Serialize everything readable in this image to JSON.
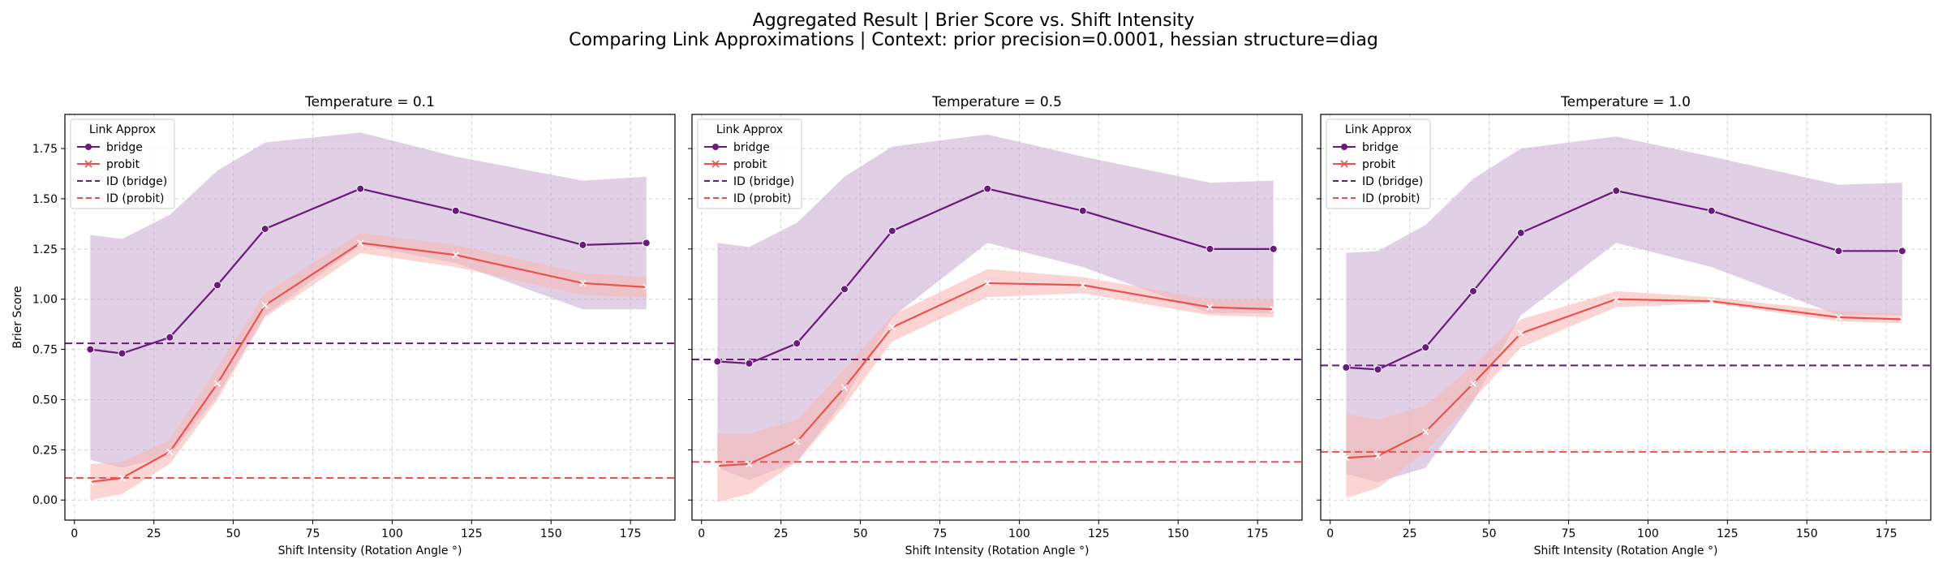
{
  "figure": {
    "title_line1": "Aggregated Result | Brier Score vs. Shift Intensity",
    "title_line2": "Comparing Link Approximations | Context: prior precision=0.0001, hessian structure=diag"
  },
  "colors": {
    "bridge": "#6a1a7a",
    "probit": "#e8534f",
    "bridge_band": "#c9a9cf",
    "probit_band": "#f7b9b6"
  },
  "chart_data": [
    {
      "type": "line",
      "title": "Temperature = 0.1",
      "xlabel": "Shift Intensity (Rotation Angle °)",
      "ylabel": "Brier Score",
      "xlim": [
        -3,
        189
      ],
      "ylim": [
        -0.1,
        1.92
      ],
      "xticks": [
        0,
        25,
        50,
        75,
        100,
        125,
        150,
        175
      ],
      "yticks": [
        "0.00",
        "0.25",
        "0.50",
        "0.75",
        "1.00",
        "1.25",
        "1.50",
        "1.75"
      ],
      "grid": true,
      "legend_title": "Link Approx",
      "legend_position": "upper-left",
      "legend": [
        "bridge",
        "probit",
        "ID (bridge)",
        "ID (probit)"
      ],
      "x": [
        5,
        15,
        30,
        45,
        60,
        90,
        120,
        160,
        180
      ],
      "series": [
        {
          "name": "bridge",
          "values": [
            0.75,
            0.73,
            0.81,
            1.07,
            1.35,
            1.55,
            1.44,
            1.27,
            1.28
          ],
          "lower": [
            0.2,
            0.16,
            0.22,
            0.52,
            0.92,
            1.27,
            1.18,
            0.95,
            0.95
          ],
          "upper": [
            1.32,
            1.3,
            1.42,
            1.64,
            1.78,
            1.83,
            1.71,
            1.59,
            1.61
          ]
        },
        {
          "name": "probit",
          "values": [
            0.09,
            0.11,
            0.24,
            0.58,
            0.97,
            1.28,
            1.22,
            1.08,
            1.06
          ],
          "lower": [
            0.0,
            0.03,
            0.18,
            0.5,
            0.91,
            1.23,
            1.16,
            1.02,
            1.01
          ],
          "upper": [
            0.18,
            0.19,
            0.3,
            0.66,
            1.03,
            1.33,
            1.27,
            1.13,
            1.11
          ]
        }
      ],
      "reference_lines": [
        {
          "name": "ID (bridge)",
          "value": 0.78
        },
        {
          "name": "ID (probit)",
          "value": 0.11
        }
      ]
    },
    {
      "type": "line",
      "title": "Temperature = 0.5",
      "xlabel": "Shift Intensity (Rotation Angle °)",
      "ylabel": "",
      "xlim": [
        -3,
        189
      ],
      "ylim": [
        -0.1,
        1.92
      ],
      "xticks": [
        0,
        25,
        50,
        75,
        100,
        125,
        150,
        175
      ],
      "yticks": [],
      "grid": true,
      "legend_title": "Link Approx",
      "legend_position": "upper-left",
      "legend": [
        "bridge",
        "probit",
        "ID (bridge)",
        "ID (probit)"
      ],
      "x": [
        5,
        15,
        30,
        45,
        60,
        90,
        120,
        160,
        180
      ],
      "series": [
        {
          "name": "bridge",
          "values": [
            0.69,
            0.68,
            0.78,
            1.05,
            1.34,
            1.55,
            1.44,
            1.25,
            1.25
          ],
          "lower": [
            0.16,
            0.1,
            0.19,
            0.5,
            0.91,
            1.28,
            1.16,
            0.93,
            0.93
          ],
          "upper": [
            1.28,
            1.26,
            1.38,
            1.61,
            1.76,
            1.82,
            1.71,
            1.58,
            1.59
          ]
        },
        {
          "name": "probit",
          "values": [
            0.17,
            0.18,
            0.29,
            0.56,
            0.86,
            1.08,
            1.07,
            0.96,
            0.95
          ],
          "lower": [
            -0.01,
            0.03,
            0.19,
            0.47,
            0.79,
            1.01,
            1.03,
            0.92,
            0.91
          ],
          "upper": [
            0.33,
            0.33,
            0.4,
            0.65,
            0.92,
            1.15,
            1.11,
            1.0,
            1.0
          ]
        }
      ],
      "reference_lines": [
        {
          "name": "ID (bridge)",
          "value": 0.7
        },
        {
          "name": "ID (probit)",
          "value": 0.19
        }
      ]
    },
    {
      "type": "line",
      "title": "Temperature = 1.0",
      "xlabel": "Shift Intensity (Rotation Angle °)",
      "ylabel": "",
      "xlim": [
        -3,
        189
      ],
      "ylim": [
        -0.1,
        1.92
      ],
      "xticks": [
        0,
        25,
        50,
        75,
        100,
        125,
        150,
        175
      ],
      "yticks": [],
      "grid": true,
      "legend_title": "Link Approx",
      "legend_position": "upper-left",
      "legend": [
        "bridge",
        "probit",
        "ID (bridge)",
        "ID (probit)"
      ],
      "x": [
        5,
        15,
        30,
        45,
        60,
        90,
        120,
        160,
        180
      ],
      "series": [
        {
          "name": "bridge",
          "values": [
            0.66,
            0.65,
            0.76,
            1.04,
            1.33,
            1.54,
            1.44,
            1.24,
            1.24
          ],
          "lower": [
            0.13,
            0.09,
            0.16,
            0.49,
            0.92,
            1.28,
            1.16,
            0.92,
            0.92
          ],
          "upper": [
            1.23,
            1.24,
            1.37,
            1.6,
            1.75,
            1.81,
            1.71,
            1.57,
            1.58
          ]
        },
        {
          "name": "probit",
          "values": [
            0.21,
            0.22,
            0.34,
            0.58,
            0.83,
            1.0,
            0.99,
            0.91,
            0.9
          ],
          "lower": [
            0.01,
            0.06,
            0.24,
            0.5,
            0.76,
            0.96,
            0.98,
            0.89,
            0.88
          ],
          "upper": [
            0.43,
            0.4,
            0.47,
            0.67,
            0.9,
            1.04,
            1.01,
            0.94,
            0.93
          ]
        }
      ],
      "reference_lines": [
        {
          "name": "ID (bridge)",
          "value": 0.67
        },
        {
          "name": "ID (probit)",
          "value": 0.24
        }
      ]
    }
  ]
}
